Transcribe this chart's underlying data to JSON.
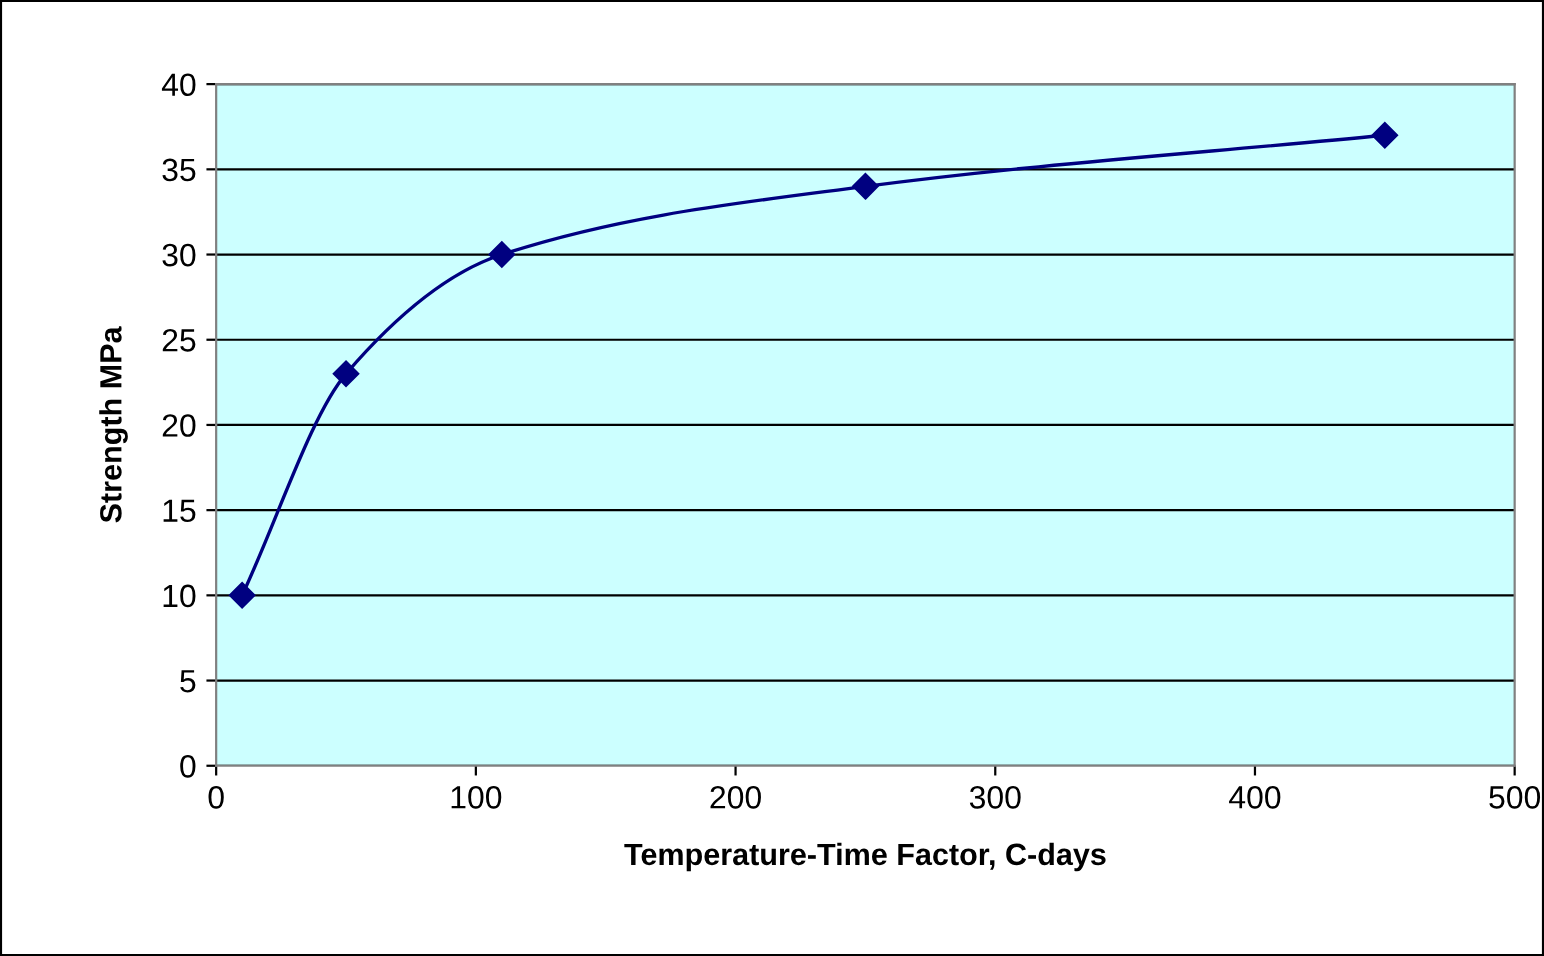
{
  "chart_data": {
    "type": "line",
    "xlabel": "Temperature-Time Factor, C-days",
    "ylabel": "Strength MPa",
    "x": [
      10,
      50,
      110,
      250,
      450
    ],
    "series": [
      {
        "color": "#000080",
        "values": [
          10,
          23,
          30,
          34,
          37
        ]
      }
    ],
    "xlim": [
      0,
      500
    ],
    "xticks": [
      0,
      100,
      200,
      300,
      400,
      500
    ],
    "ylim": [
      0,
      40
    ],
    "yticks": [
      0,
      5,
      10,
      15,
      20,
      25,
      30,
      35,
      40
    ],
    "grid": "y",
    "marker": "diamond",
    "line_style": "solid"
  }
}
